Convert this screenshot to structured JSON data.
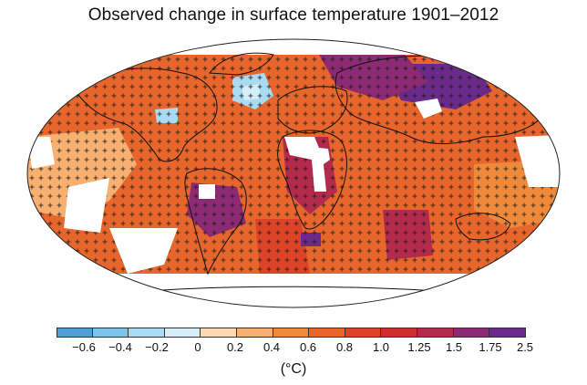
{
  "title": "Observed change in surface temperature 1901–2012",
  "legend": {
    "unit": "(°C)",
    "tick_labels": [
      "−0.6",
      "−0.4",
      "−0.2",
      "0",
      "0.2",
      "0.4",
      "0.6",
      "0.8",
      "1.0",
      "1.25",
      "1.5",
      "1.75",
      "2.5"
    ],
    "colors": [
      "#4f9fd6",
      "#7cc4ea",
      "#a9dbf2",
      "#d6eef8",
      "#fbd9b4",
      "#f7b070",
      "#ef8a3a",
      "#e8652c",
      "#dd4427",
      "#cf2f2a",
      "#b42a4d",
      "#8c2b73",
      "#6a2a8a"
    ]
  },
  "map": {
    "ocean_color": "#e8652c",
    "land_no_data_color": "#ffffff",
    "significance_marker": "+",
    "regions": [
      {
        "name": "north-atlantic-cooling",
        "change_bin": "-0.2 to 0",
        "color": "#a9dbf2"
      },
      {
        "name": "greenland-sea-cooling",
        "change_bin": "0 to 0.2",
        "color": "#d6eef8"
      },
      {
        "name": "north-africa-no-data",
        "change_bin": "no data",
        "color": "#ffffff"
      },
      {
        "name": "south-america-no-data",
        "change_bin": "no data",
        "color": "#ffffff"
      },
      {
        "name": "siberia-strong-warming",
        "change_bin": "1.75 to 2.5",
        "color": "#6a2a8a"
      },
      {
        "name": "amazon-strong-warming",
        "change_bin": "1.5 to 1.75",
        "color": "#8c2b73"
      },
      {
        "name": "central-africa-strong-warming",
        "change_bin": "1.25 to 1.5",
        "color": "#b42a4d"
      },
      {
        "name": "pacific-moderate-warming",
        "change_bin": "0.4 to 0.6",
        "color": "#f7b070"
      },
      {
        "name": "southern-ocean-no-data",
        "change_bin": "no data",
        "color": "#ffffff"
      }
    ]
  }
}
